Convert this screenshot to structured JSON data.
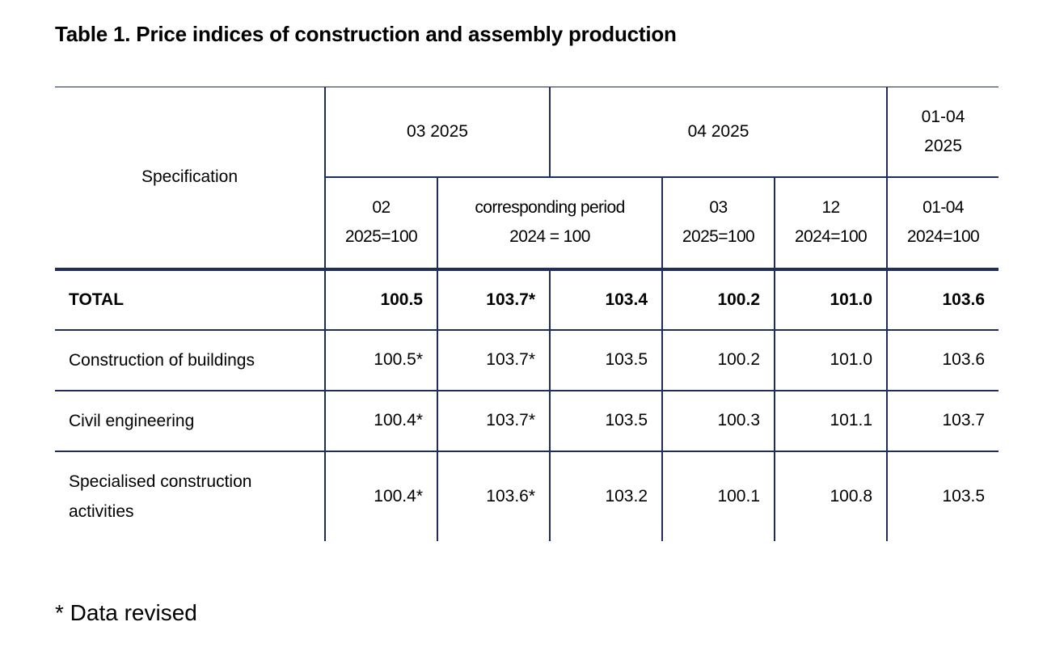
{
  "title": "Table 1. Price indices of construction and assembly production",
  "header": {
    "spec": "Specification",
    "group1": "03 2025",
    "group2": "04 2025",
    "group3_l1": "01-04",
    "group3_l2": "2025",
    "sub": [
      {
        "l1": "02",
        "l2": "2025=100"
      },
      {
        "l1": "corresponding period",
        "l2": "2024 = 100"
      },
      {
        "l1": "03",
        "l2": "2025=100"
      },
      {
        "l1": "12",
        "l2": "2024=100"
      },
      {
        "l1": "01-04",
        "l2": "2024=100"
      }
    ]
  },
  "rows": [
    {
      "label": "TOTAL",
      "values": [
        "100.5",
        "103.7*",
        "103.4",
        "100.2",
        "101.0",
        "103.6"
      ]
    },
    {
      "label": "Construction of buildings",
      "values": [
        "100.5*",
        "103.7*",
        "103.5",
        "100.2",
        "101.0",
        "103.6"
      ]
    },
    {
      "label": "Civil engineering",
      "values": [
        "100.4*",
        "103.7*",
        "103.5",
        "100.3",
        "101.1",
        "103.7"
      ]
    },
    {
      "label_l1": "Specialised construction",
      "label_l2": "activities",
      "values": [
        "100.4*",
        "103.6*",
        "103.2",
        "100.1",
        "100.8",
        "103.5"
      ]
    }
  ],
  "footnote": "* Data revised",
  "colors": {
    "rule": "#1f2d5c",
    "text": "#000000"
  }
}
